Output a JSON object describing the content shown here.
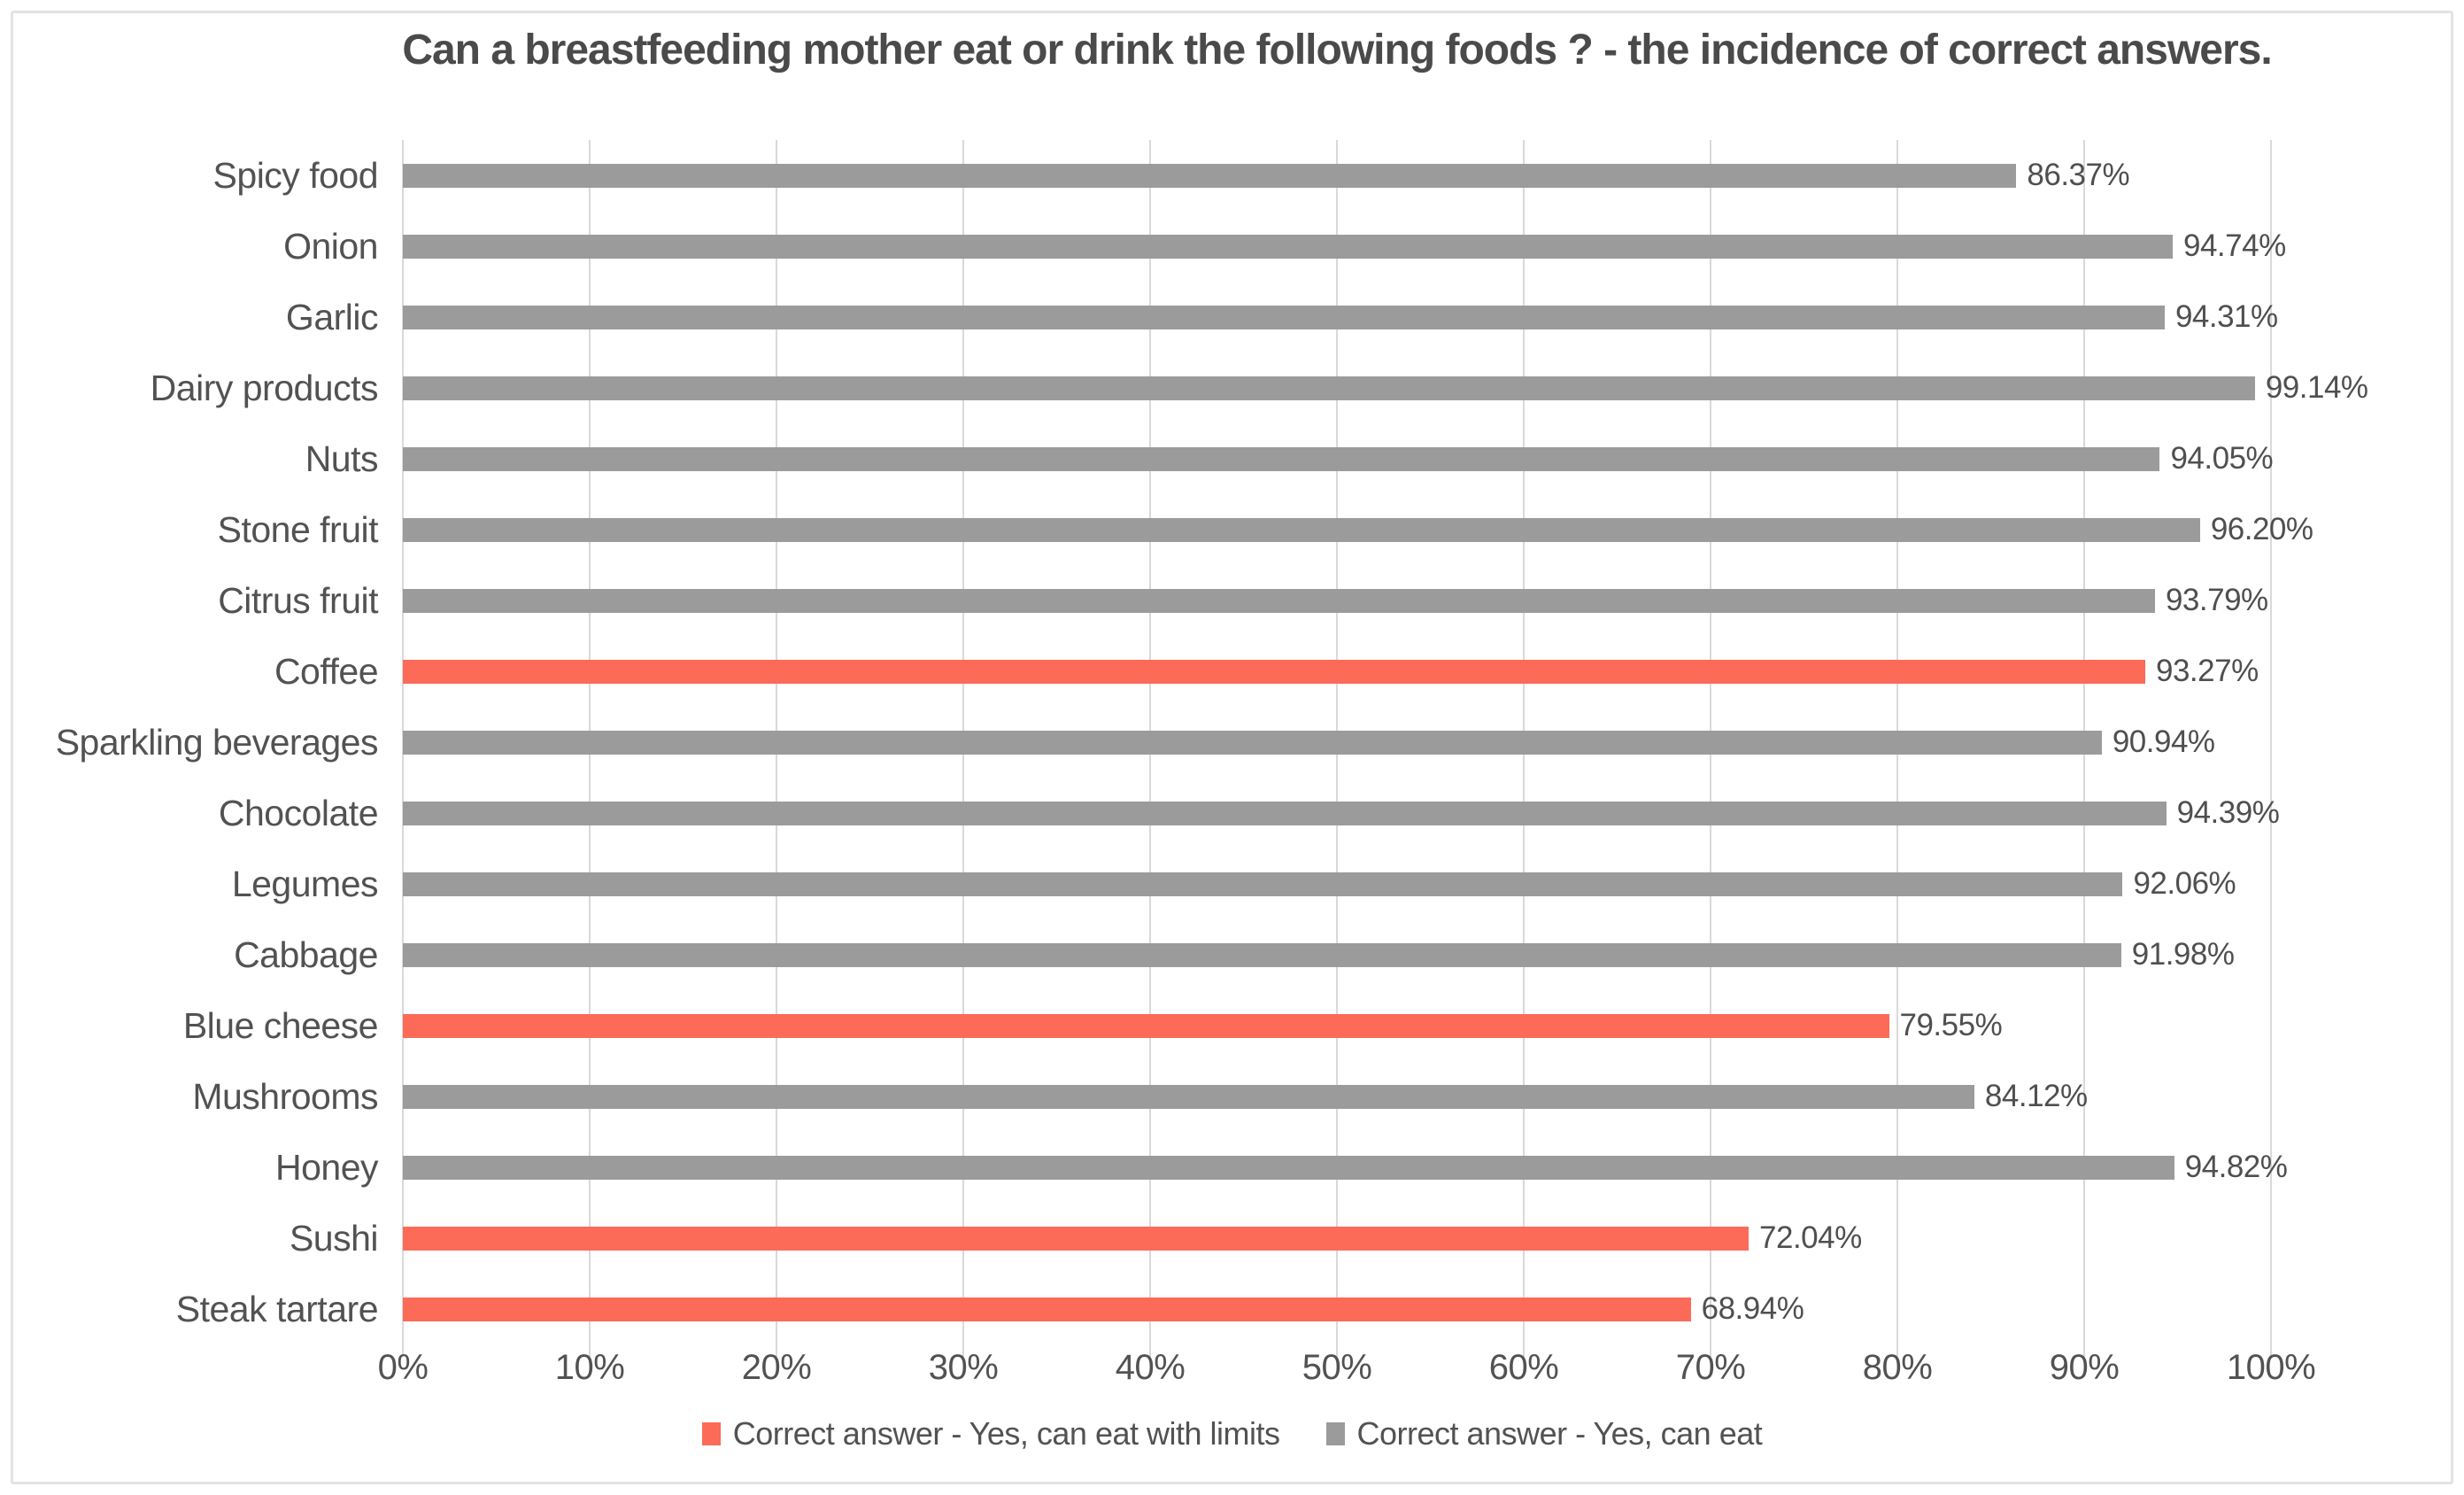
{
  "chart_data": {
    "type": "bar",
    "orientation": "horizontal",
    "title": "Can a breastfeeding mother eat or drink the following foods ? - the incidence of correct answers.",
    "x_axis": {
      "min": 0,
      "max": 100,
      "tick_step": 10,
      "tick_labels": [
        "0%",
        "10%",
        "20%",
        "30%",
        "40%",
        "50%",
        "60%",
        "70%",
        "80%",
        "90%",
        "100%"
      ]
    },
    "grid": true,
    "legend_position": "bottom",
    "series": [
      {
        "name": "Correct answer - Yes, can eat with limits",
        "color": "#FC6A58"
      },
      {
        "name": "Correct answer - Yes, can eat",
        "color": "#9B9B9B"
      }
    ],
    "rows": [
      {
        "category": "Spicy food",
        "value": 86.37,
        "label": "86.37%",
        "series": 1
      },
      {
        "category": "Onion",
        "value": 94.74,
        "label": "94.74%",
        "series": 1
      },
      {
        "category": "Garlic",
        "value": 94.31,
        "label": "94.31%",
        "series": 1
      },
      {
        "category": "Dairy products",
        "value": 99.14,
        "label": "99.14%",
        "series": 1
      },
      {
        "category": "Nuts",
        "value": 94.05,
        "label": "94.05%",
        "series": 1
      },
      {
        "category": "Stone fruit",
        "value": 96.2,
        "label": "96.20%",
        "series": 1
      },
      {
        "category": "Citrus fruit",
        "value": 93.79,
        "label": "93.79%",
        "series": 1
      },
      {
        "category": "Coffee",
        "value": 93.27,
        "label": "93.27%",
        "series": 0
      },
      {
        "category": "Sparkling beverages",
        "value": 90.94,
        "label": "90.94%",
        "series": 1
      },
      {
        "category": "Chocolate",
        "value": 94.39,
        "label": "94.39%",
        "series": 1
      },
      {
        "category": "Legumes",
        "value": 92.06,
        "label": "92.06%",
        "series": 1
      },
      {
        "category": "Cabbage",
        "value": 91.98,
        "label": "91.98%",
        "series": 1
      },
      {
        "category": "Blue cheese",
        "value": 79.55,
        "label": "79.55%",
        "series": 0
      },
      {
        "category": "Mushrooms",
        "value": 84.12,
        "label": "84.12%",
        "series": 1
      },
      {
        "category": "Honey",
        "value": 94.82,
        "label": "94.82%",
        "series": 1
      },
      {
        "category": "Sushi",
        "value": 72.04,
        "label": "72.04%",
        "series": 0
      },
      {
        "category": "Steak tartare",
        "value": 68.94,
        "label": "68.94%",
        "series": 0
      }
    ],
    "colors": {
      "grid": "#D9D9D9",
      "title_text": "#4A4A4A",
      "label_text": "#525252"
    }
  }
}
